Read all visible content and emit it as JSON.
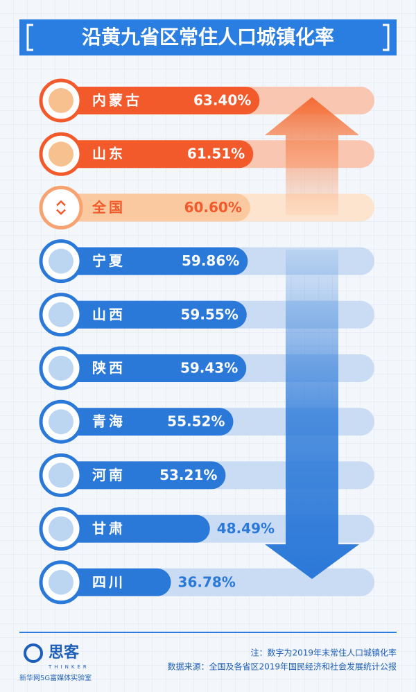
{
  "chart_data": {
    "type": "hbar",
    "title": "沿黄九省区常住人口城镇化率",
    "categories": [
      "内蒙古",
      "山东",
      "全国",
      "宁夏",
      "山西",
      "陕西",
      "青海",
      "河南",
      "甘肃",
      "四川"
    ],
    "values": [
      63.4,
      61.51,
      60.6,
      59.86,
      59.55,
      59.43,
      55.52,
      53.21,
      48.49,
      36.78
    ],
    "value_labels": [
      "63.40%",
      "61.51%",
      "60.60%",
      "59.86%",
      "59.55%",
      "59.43%",
      "55.52%",
      "53.21%",
      "48.49%",
      "36.78%"
    ],
    "colors": [
      "#f25a2c",
      "#f25a2c",
      "#fbc9a0",
      "#2a78d8",
      "#2a78d8",
      "#2a78d8",
      "#2a78d8",
      "#2a78d8",
      "#2a78d8",
      "#2a78d8"
    ]
  },
  "footer": {
    "note": "注：数字为2019年末常住人口城镇化率",
    "source": "数据来源：全国及各省区2019年国民经济和社会发展统计公报",
    "logo": "思客",
    "logo_sub": "THINKER",
    "lab": "新华网5G富媒体实验室"
  }
}
